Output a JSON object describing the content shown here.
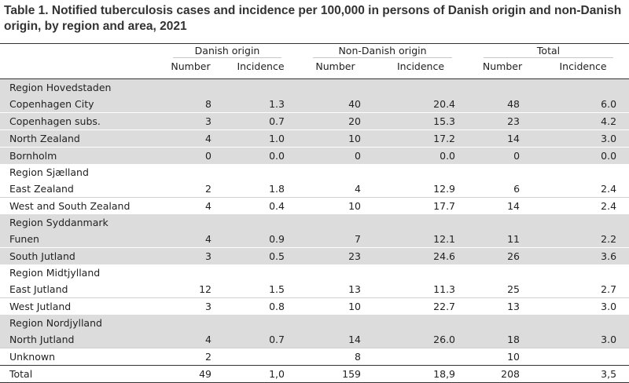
{
  "title": "Table 1. Notified tuberculosis cases and incidence per 100,000 in persons of Danish origin and non-Danish origin, by region and area, 2021",
  "groups": [
    "Danish origin",
    "Non-Danish origin",
    "Total"
  ],
  "subheaders": [
    "Number",
    "Incidence",
    "Number",
    "Incidence",
    "Number",
    "Incidence"
  ],
  "rows": [
    {
      "label": "Region Hovedstaden",
      "type": "region",
      "shade": true,
      "cells": [
        "",
        "",
        "",
        "",
        "",
        ""
      ]
    },
    {
      "label": "Copenhagen City",
      "type": "area",
      "shade": true,
      "cells": [
        "8",
        "1.3",
        "40",
        "20.4",
        "48",
        "6.0"
      ]
    },
    {
      "label": "Copenhagen subs.",
      "type": "area",
      "shade": true,
      "cells": [
        "3",
        "0.7",
        "20",
        "15.3",
        "23",
        "4.2"
      ]
    },
    {
      "label": "North Zealand",
      "type": "area",
      "shade": true,
      "cells": [
        "4",
        "1.0",
        "10",
        "17.2",
        "14",
        "3.0"
      ]
    },
    {
      "label": "Bornholm",
      "type": "area",
      "shade": true,
      "cells": [
        "0",
        "0.0",
        "0",
        "0.0",
        "0",
        "0.0"
      ]
    },
    {
      "label": "Region Sjælland",
      "type": "region",
      "shade": false,
      "cells": [
        "",
        "",
        "",
        "",
        "",
        ""
      ]
    },
    {
      "label": "East Zealand",
      "type": "area",
      "shade": false,
      "cells": [
        "2",
        "1.8",
        "4",
        "12.9",
        "6",
        "2.4"
      ]
    },
    {
      "label": "West and South Zealand",
      "type": "area",
      "shade": false,
      "cells": [
        "4",
        "0.4",
        "10",
        "17.7",
        "14",
        "2.4"
      ]
    },
    {
      "label": "Region Syddanmark",
      "type": "region",
      "shade": true,
      "cells": [
        "",
        "",
        "",
        "",
        "",
        ""
      ]
    },
    {
      "label": "Funen",
      "type": "area",
      "shade": true,
      "cells": [
        "4",
        "0.9",
        "7",
        "12.1",
        "11",
        "2.2"
      ]
    },
    {
      "label": "South Jutland",
      "type": "area",
      "shade": true,
      "cells": [
        "3",
        "0.5",
        "23",
        "24.6",
        "26",
        "3.6"
      ]
    },
    {
      "label": "Region Midtjylland",
      "type": "region",
      "shade": false,
      "cells": [
        "",
        "",
        "",
        "",
        "",
        ""
      ]
    },
    {
      "label": "East Jutland",
      "type": "area",
      "shade": false,
      "cells": [
        "12",
        "1.5",
        "13",
        "11.3",
        "25",
        "2.7"
      ]
    },
    {
      "label": "West Jutland",
      "type": "area",
      "shade": false,
      "cells": [
        "3",
        "0.8",
        "10",
        "22.7",
        "13",
        "3.0"
      ]
    },
    {
      "label": "Region Nordjylland",
      "type": "region",
      "shade": true,
      "cells": [
        "",
        "",
        "",
        "",
        "",
        ""
      ]
    },
    {
      "label": "North Jutland",
      "type": "area",
      "shade": true,
      "cells": [
        "4",
        "0.7",
        "14",
        "26.0",
        "18",
        "3.0"
      ]
    },
    {
      "label": "Unknown",
      "type": "area",
      "shade": false,
      "cells": [
        "2",
        "",
        "8",
        "",
        "10",
        ""
      ]
    },
    {
      "label": "Total",
      "type": "total",
      "shade": false,
      "cells": [
        "49",
        "1,0",
        "159",
        "18,9",
        "208",
        "3,5"
      ]
    }
  ]
}
